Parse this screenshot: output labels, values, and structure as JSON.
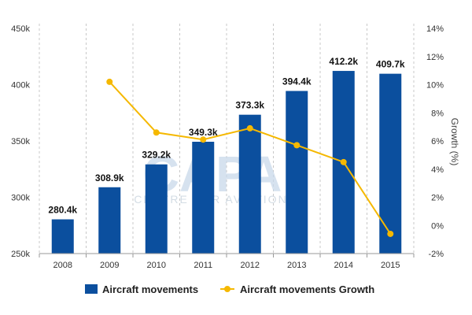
{
  "chart_data": {
    "type": "bar",
    "categories": [
      "2008",
      "2009",
      "2010",
      "2011",
      "2012",
      "2013",
      "2014",
      "2015"
    ],
    "series": [
      {
        "name": "Aircraft movements",
        "type": "bar",
        "axis": "left",
        "values": [
          280400,
          308900,
          329200,
          349300,
          373300,
          394400,
          412200,
          409700
        ],
        "labels": [
          "280.4k",
          "308.9k",
          "329.2k",
          "349.3k",
          "373.3k",
          "394.4k",
          "412.2k",
          "409.7k"
        ],
        "color": "#0b4f9e"
      },
      {
        "name": "Aircraft movements Growth",
        "type": "line",
        "axis": "right",
        "values": [
          null,
          10.2,
          6.6,
          6.1,
          6.9,
          5.7,
          4.5,
          -0.6
        ],
        "color": "#f5b800"
      }
    ],
    "y_left": {
      "min": 250000,
      "max": 450000,
      "ticks": [
        250000,
        300000,
        350000,
        400000,
        450000
      ],
      "tick_labels": [
        "250k",
        "300k",
        "350k",
        "400k",
        "450k"
      ]
    },
    "y_right": {
      "label": "Growth (%)",
      "min": -2,
      "max": 14,
      "ticks": [
        -2,
        0,
        2,
        4,
        6,
        8,
        10,
        12,
        14
      ],
      "tick_labels": [
        "-2%",
        "0%",
        "2%",
        "4%",
        "6%",
        "8%",
        "10%",
        "12%",
        "14%"
      ]
    },
    "grid": "vertical-dashed",
    "legend": "bottom-center"
  },
  "watermark": {
    "big": "CAPA",
    "small": "CENTRE FOR AVIATION"
  }
}
